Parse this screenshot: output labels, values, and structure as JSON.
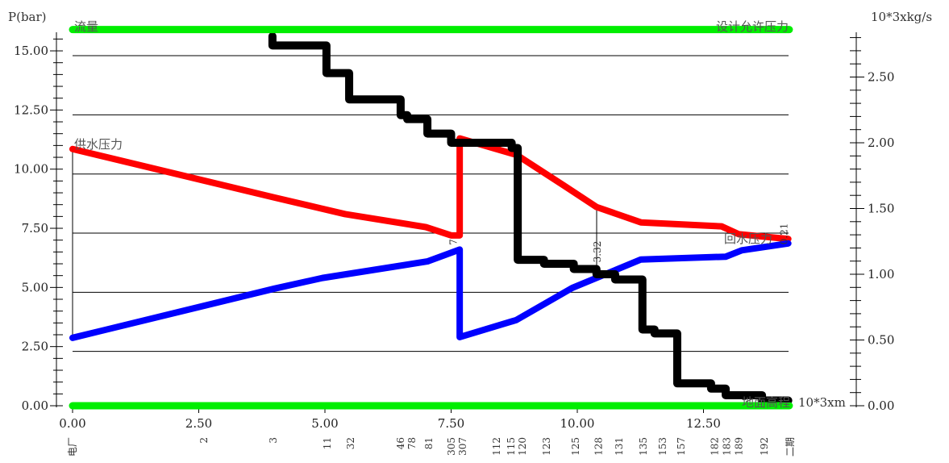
{
  "chart_data": {
    "type": "line",
    "left_axis_label": "P(bar)",
    "right_axis_label": "10*3xkg/s",
    "x_axis_label": "10*3xm",
    "xlim": [
      0,
      14.2
    ],
    "ylim_left": [
      0,
      15.9
    ],
    "ylim_right": [
      0,
      2.85
    ],
    "x_ticks": [
      "0.00",
      "2.50",
      "5.00",
      "7.50",
      "10.00",
      "12.50"
    ],
    "y_ticks_left": [
      "0.00",
      "2.50",
      "5.00",
      "7.50",
      "10.00",
      "12.50",
      "15.00"
    ],
    "y_ticks_right": [
      "0.00",
      "0.50",
      "1.00",
      "1.50",
      "2.00",
      "2.50"
    ],
    "grid": true,
    "colors": {
      "supply": "#ff0000",
      "return": "#0000ff",
      "flow": "#000000",
      "limit": "#00ee00"
    },
    "series": [
      {
        "name": "供水压力",
        "axis": "left",
        "color": "#ff0000",
        "points": [
          [
            0,
            10.85
          ],
          [
            4,
            8.8
          ],
          [
            5.4,
            8.1
          ],
          [
            7.0,
            7.55
          ],
          [
            7.5,
            7.2
          ],
          [
            7.67,
            7.2
          ],
          [
            7.67,
            11.3
          ],
          [
            8.8,
            10.6
          ],
          [
            9.74,
            9.3
          ],
          [
            10.38,
            8.4
          ],
          [
            11.26,
            7.75
          ],
          [
            12.86,
            7.58
          ],
          [
            13.2,
            7.25
          ],
          [
            14.18,
            7.05
          ]
        ]
      },
      {
        "name": "回水压力",
        "axis": "left",
        "color": "#0000ff",
        "points": [
          [
            0,
            2.87
          ],
          [
            4,
            4.95
          ],
          [
            4.95,
            5.4
          ],
          [
            7.03,
            6.1
          ],
          [
            7.54,
            6.5
          ],
          [
            7.67,
            6.6
          ],
          [
            7.67,
            2.9
          ],
          [
            8.79,
            3.62
          ],
          [
            9.9,
            4.98
          ],
          [
            11.26,
            6.18
          ],
          [
            12.94,
            6.3
          ],
          [
            13.26,
            6.57
          ],
          [
            14.18,
            6.86
          ]
        ]
      },
      {
        "name": "流量",
        "axis": "right",
        "color": "#000000",
        "steps": [
          [
            3.96,
            2.81
          ],
          [
            3.96,
            2.74
          ],
          [
            5.03,
            2.53
          ],
          [
            5.48,
            2.33
          ],
          [
            6.5,
            2.21
          ],
          [
            6.63,
            2.18
          ],
          [
            7.03,
            2.07
          ],
          [
            7.5,
            2.0
          ],
          [
            8.7,
            1.96
          ],
          [
            8.82,
            1.11
          ],
          [
            9.34,
            1.08
          ],
          [
            9.93,
            1.04
          ],
          [
            10.38,
            1.0
          ],
          [
            10.75,
            0.96
          ],
          [
            11.29,
            0.58
          ],
          [
            11.53,
            0.55
          ],
          [
            11.98,
            0.17
          ],
          [
            12.65,
            0.13
          ],
          [
            12.94,
            0.08
          ],
          [
            13.66,
            0.04
          ],
          [
            14.18,
            0.04
          ]
        ]
      },
      {
        "name": "设计允许压力",
        "axis": "left",
        "color": "#00ee00",
        "points": [
          [
            0,
            15.9
          ],
          [
            14.2,
            15.9
          ]
        ]
      },
      {
        "name": "地面高程",
        "axis": "left",
        "color": "#00ee00",
        "points": [
          [
            0,
            0
          ],
          [
            14.2,
            0
          ]
        ]
      }
    ],
    "annotations": [
      {
        "text": "3.32",
        "x": 10.4
      },
      {
        "text": "0.21",
        "x": 14.1
      },
      {
        "text": "7",
        "x": 7.55
      }
    ],
    "nodes": [
      {
        "label": "电厂",
        "x": 0
      },
      {
        "label": "2",
        "x": 2.6
      },
      {
        "label": "3",
        "x": 3.98
      },
      {
        "label": "11",
        "x": 5.05
      },
      {
        "label": "32",
        "x": 5.51
      },
      {
        "label": "46",
        "x": 6.5
      },
      {
        "label": "78",
        "x": 6.63
      },
      {
        "label": "81",
        "x": 7.06
      },
      {
        "label": "305",
        "x": 7.51
      },
      {
        "label": "307",
        "x": 7.72
      },
      {
        "label": "112",
        "x": 8.4
      },
      {
        "label": "115",
        "x": 8.69
      },
      {
        "label": "120",
        "x": 8.83
      },
      {
        "label": "123",
        "x": 9.39
      },
      {
        "label": "125",
        "x": 9.97
      },
      {
        "label": "128",
        "x": 10.42
      },
      {
        "label": "131",
        "x": 10.83
      },
      {
        "label": "135",
        "x": 11.31
      },
      {
        "label": "153",
        "x": 11.69
      },
      {
        "label": "157",
        "x": 12.06
      },
      {
        "label": "182",
        "x": 12.72
      },
      {
        "label": "183",
        "x": 12.96
      },
      {
        "label": "189",
        "x": 13.2
      },
      {
        "label": "192",
        "x": 13.71
      },
      {
        "label": "二期",
        "x": 14.22
      }
    ]
  }
}
